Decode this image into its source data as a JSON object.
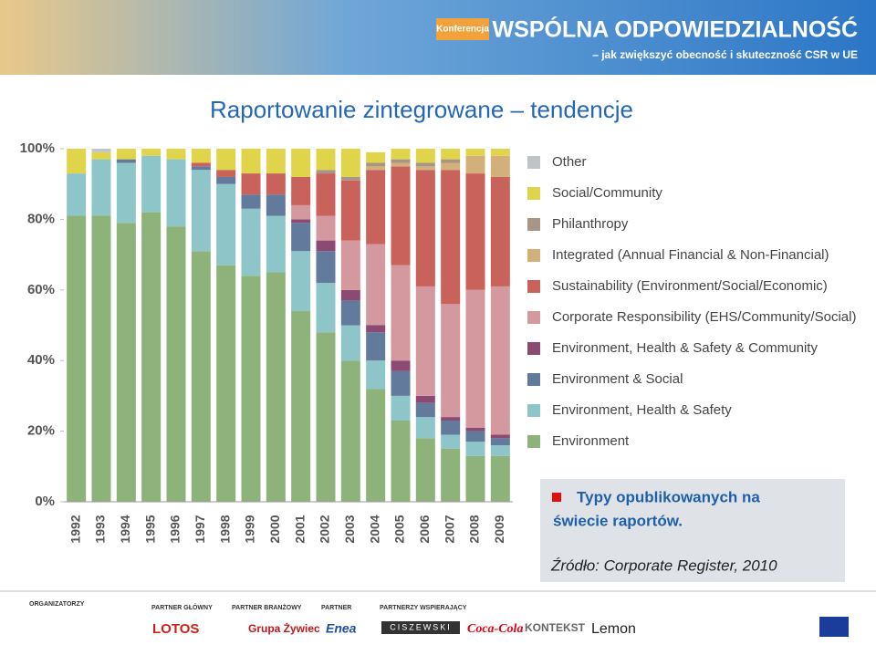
{
  "header": {
    "badge": "Konferencja",
    "title": "WSPÓLNA ODPOWIEDZIALNOŚĆ",
    "subtitle": "– jak zwiększyć obecność i skuteczność CSR w UE"
  },
  "slide_title": "Raportowanie zintegrowane – tendencje",
  "chart_data": {
    "type": "stacked-bar",
    "categories": [
      "1992",
      "1993",
      "1994",
      "1995",
      "1996",
      "1997",
      "1998",
      "1999",
      "2000",
      "2001",
      "2002",
      "2003",
      "2004",
      "2005",
      "2006",
      "2007",
      "2008",
      "2009"
    ],
    "ylim": [
      0,
      100
    ],
    "yticks": [
      {
        "value": 0,
        "label": "0%"
      },
      {
        "value": 20,
        "label": "20%"
      },
      {
        "value": 40,
        "label": "40%"
      },
      {
        "value": 60,
        "label": "60%"
      },
      {
        "value": 80,
        "label": "80%"
      },
      {
        "value": 100,
        "label": "100%"
      }
    ],
    "series": [
      {
        "name": "Environment",
        "color": "#8db37a",
        "values": [
          81,
          81,
          79,
          82,
          78,
          71,
          67,
          64,
          65,
          54,
          48,
          40,
          32,
          23,
          18,
          15,
          13,
          13
        ]
      },
      {
        "name": "Environment, Health & Safety",
        "color": "#8dc5c8",
        "values": [
          12,
          16,
          17,
          16,
          19,
          23,
          23,
          19,
          16,
          17,
          14,
          10,
          8,
          7,
          6,
          4,
          4,
          3
        ]
      },
      {
        "name": "Environment & Social",
        "color": "#627a9b",
        "values": [
          0,
          0,
          1,
          0,
          0,
          1,
          2,
          4,
          6,
          8,
          9,
          7,
          8,
          7,
          4,
          4,
          3,
          2
        ]
      },
      {
        "name": "Environment, Health & Safety & Community",
        "color": "#8b4a72",
        "values": [
          0,
          0,
          0,
          0,
          0,
          0,
          0,
          0,
          0,
          1,
          3,
          3,
          2,
          3,
          2,
          1,
          1,
          1
        ]
      },
      {
        "name": "Corporate Responsibility (EHS/Community/Social)",
        "color": "#d4989f",
        "values": [
          0,
          0,
          0,
          0,
          0,
          0,
          0,
          0,
          0,
          4,
          7,
          14,
          23,
          27,
          31,
          32,
          39,
          42
        ]
      },
      {
        "name": "Sustainability (Environment/Social/Economic)",
        "color": "#c9625a",
        "values": [
          0,
          0,
          0,
          0,
          0,
          1,
          2,
          6,
          6,
          8,
          12,
          17,
          21,
          28,
          33,
          38,
          33,
          31
        ]
      },
      {
        "name": "Integrated (Annual Financial & Non-Financial)",
        "color": "#d3b07a",
        "values": [
          0,
          0,
          0,
          0,
          0,
          0,
          0,
          0,
          0,
          0,
          0,
          0,
          1,
          1,
          1,
          2,
          5,
          6
        ]
      },
      {
        "name": "Philanthropy",
        "color": "#a89585",
        "values": [
          0,
          0,
          0,
          0,
          0,
          0,
          0,
          0,
          0,
          0,
          1,
          1,
          1,
          1,
          1,
          1,
          0,
          0
        ]
      },
      {
        "name": "Social/Community",
        "color": "#e0d44a",
        "values": [
          7,
          2,
          3,
          2,
          3,
          4,
          6,
          7,
          7,
          8,
          6,
          8,
          3,
          3,
          4,
          3,
          2,
          2
        ]
      },
      {
        "name": "Other",
        "color": "#c0c4c8",
        "values": [
          0,
          1,
          0,
          0,
          0,
          0,
          0,
          0,
          0,
          0,
          0,
          0,
          0,
          0,
          0,
          0,
          0,
          0
        ]
      }
    ]
  },
  "note": {
    "lines": [
      "Typy opublikowanych na",
      "świecie raportów."
    ],
    "source": "Źródło: Corporate Register, 2010"
  },
  "footer": {
    "groups": [
      "ORGANIZATORZY",
      "PARTNER GŁÓWNY",
      "PARTNER BRANŻOWY",
      "PARTNER",
      "PARTNERZY WSPIERAJĄCY"
    ],
    "logos": [
      "LOTOS",
      "Grupa Żywiec",
      "Enea",
      "CISZEWSKI",
      "Coca-Cola",
      "KONTEKST",
      "Lemon"
    ]
  }
}
